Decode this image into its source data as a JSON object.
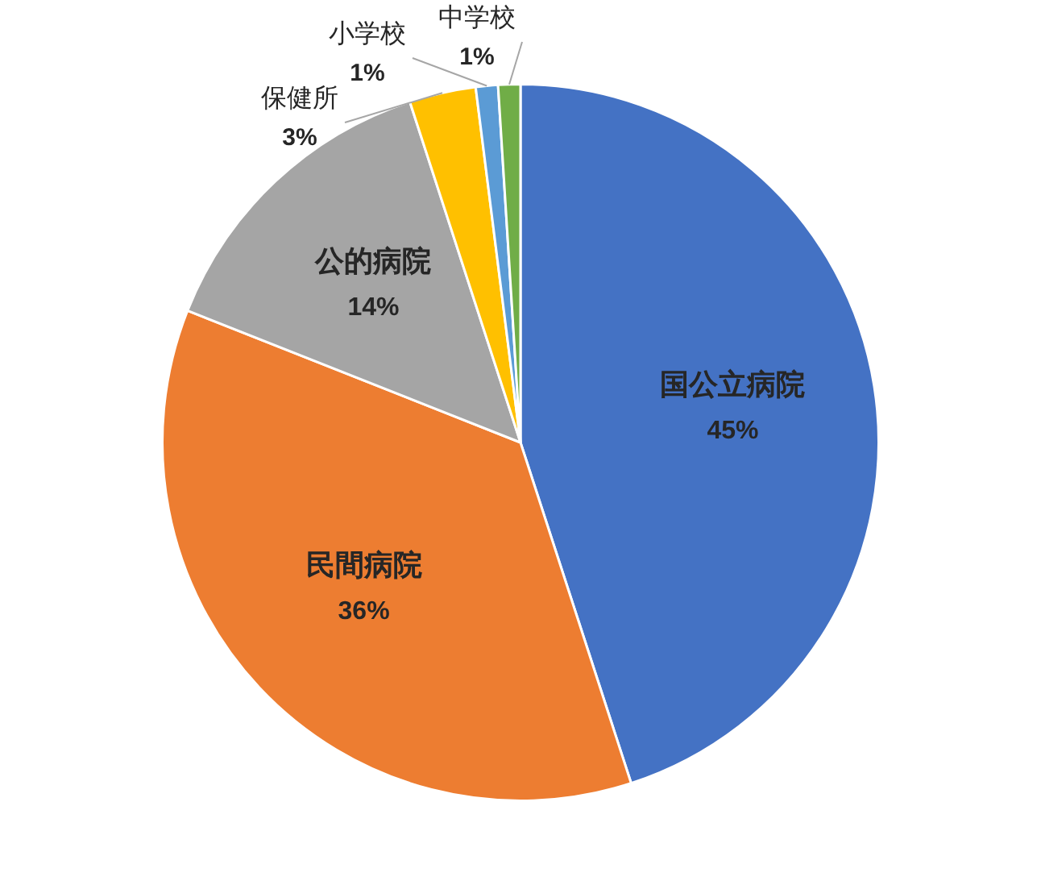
{
  "chart_data": {
    "type": "pie",
    "categories": [
      "国公立病院",
      "民間病院",
      "公的病院",
      "保健所",
      "小学校",
      "中学校"
    ],
    "values": [
      45,
      36,
      14,
      3,
      1,
      1
    ],
    "colors": [
      "#4472c4",
      "#ed7d31",
      "#a5a5a5",
      "#ffc000",
      "#5b9bd5",
      "#70ad47"
    ],
    "value_labels": [
      "45%",
      "36%",
      "14%",
      "3%",
      "1%",
      "1%"
    ],
    "legend": false
  }
}
